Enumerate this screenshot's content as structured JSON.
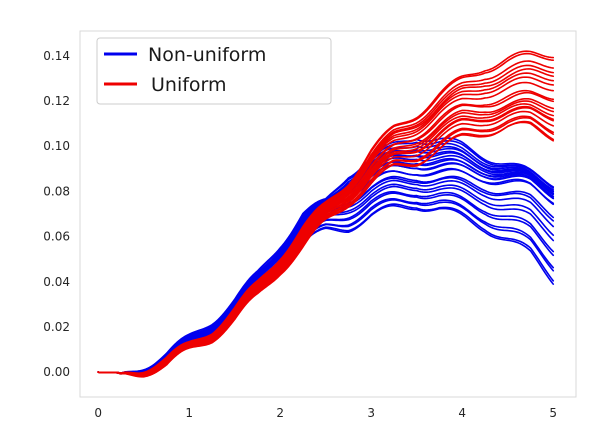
{
  "chart_data": {
    "type": "line",
    "title": "",
    "xlabel": "",
    "ylabel": "",
    "xlim": [
      -0.2,
      5.25
    ],
    "ylim": [
      -0.011,
      0.151
    ],
    "grid": false,
    "legend_position": "top-left",
    "x_ticks": [
      0,
      1,
      2,
      3,
      4,
      5
    ],
    "y_ticks": [
      0.0,
      0.02,
      0.04,
      0.06,
      0.08,
      0.1,
      0.12,
      0.14
    ],
    "x_tick_labels": [
      "0",
      "1",
      "2",
      "3",
      "4",
      "5"
    ],
    "y_tick_labels": [
      "0.00",
      "0.02",
      "0.04",
      "0.06",
      "0.08",
      "0.10",
      "0.12",
      "0.14"
    ],
    "x": [
      0,
      0.25,
      0.5,
      0.75,
      1,
      1.25,
      1.5,
      1.75,
      2,
      2.25,
      2.5,
      2.75,
      3,
      3.25,
      3.5,
      3.75,
      4,
      4.25,
      4.5,
      4.75,
      5
    ],
    "series": [
      {
        "name": "Non-uniform",
        "color": "#0000ee",
        "line_count": 25,
        "final_value_range": [
          0.04,
          0.085
        ],
        "values_median": [
          0.0,
          -0.002,
          0.002,
          0.006,
          0.013,
          0.02,
          0.029,
          0.039,
          0.052,
          0.064,
          0.072,
          0.08,
          0.085,
          0.088,
          0.09,
          0.089,
          0.088,
          0.087,
          0.085,
          0.083,
          0.078
        ],
        "values_low": [
          0.0,
          -0.002,
          0.001,
          0.004,
          0.01,
          0.016,
          0.025,
          0.034,
          0.046,
          0.057,
          0.062,
          0.064,
          0.069,
          0.072,
          0.074,
          0.072,
          0.068,
          0.064,
          0.058,
          0.052,
          0.041
        ],
        "values_high": [
          0.0,
          -0.002,
          0.003,
          0.008,
          0.015,
          0.023,
          0.032,
          0.043,
          0.057,
          0.07,
          0.075,
          0.088,
          0.095,
          0.1,
          0.105,
          0.103,
          0.1,
          0.096,
          0.092,
          0.088,
          0.084
        ]
      },
      {
        "name": "Uniform",
        "color": "#ee0000",
        "line_count": 20,
        "final_value_range": [
          0.104,
          0.142
        ],
        "values_median": [
          0.0,
          -0.002,
          0.001,
          0.004,
          0.01,
          0.017,
          0.026,
          0.036,
          0.049,
          0.06,
          0.07,
          0.08,
          0.09,
          0.098,
          0.104,
          0.11,
          0.115,
          0.118,
          0.119,
          0.12,
          0.12
        ],
        "values_low": [
          0.0,
          -0.002,
          0.0,
          0.003,
          0.009,
          0.015,
          0.023,
          0.033,
          0.045,
          0.055,
          0.066,
          0.075,
          0.083,
          0.09,
          0.093,
          0.098,
          0.103,
          0.106,
          0.108,
          0.108,
          0.104
        ],
        "values_high": [
          0.0,
          -0.002,
          0.002,
          0.006,
          0.012,
          0.019,
          0.028,
          0.039,
          0.052,
          0.064,
          0.074,
          0.085,
          0.098,
          0.108,
          0.115,
          0.123,
          0.13,
          0.136,
          0.139,
          0.141,
          0.142
        ]
      }
    ],
    "legend": [
      {
        "label": "Non-uniform",
        "color": "#0000ee"
      },
      {
        "label": "Uniform",
        "color": "#ee0000"
      }
    ]
  }
}
